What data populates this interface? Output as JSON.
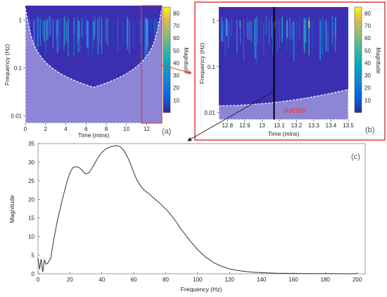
{
  "panels": {
    "a": {
      "tag": "(a)",
      "xlabel": "Time (mins)",
      "ylabel": "Frequency (Hz)",
      "colorbar_label": "Magnitude",
      "xticks": [
        "0",
        "2",
        "4",
        "6",
        "8",
        "10",
        "12"
      ],
      "yticks": [
        "1",
        "0.1",
        "0.01"
      ],
      "cticks": [
        "10",
        "20",
        "30",
        "40",
        "50",
        "60",
        "70",
        "80"
      ]
    },
    "b": {
      "tag": "(b)",
      "xlabel": "Time (mins)",
      "ylabel": "Frequency (Hz)",
      "colorbar_label": "Magnitude",
      "annotation": "Jumps",
      "xticks": [
        "12.8",
        "12.9",
        "13",
        "13.1",
        "13.2",
        "13.3",
        "13.4",
        "13.5"
      ],
      "yticks": [
        "1",
        "0.1",
        "0.01"
      ],
      "cticks": [
        "10",
        "20",
        "30",
        "40",
        "50",
        "60",
        "70",
        "80"
      ]
    },
    "c": {
      "tag": "(c)",
      "xlabel": "Frequency (Hz)",
      "ylabel": "Magnitude",
      "xticks": [
        "0",
        "20",
        "40",
        "60",
        "80",
        "100",
        "120",
        "140",
        "160",
        "180",
        "200"
      ],
      "yticks": [
        "0",
        "5",
        "10",
        "15",
        "20",
        "25",
        "30",
        "35"
      ]
    }
  },
  "colors": {
    "background_blue": "#3a2fb0",
    "cone_fill": "#8d86d6",
    "highlight_box": "#e23b3b",
    "arrow": "#e23b3b",
    "jumps_text": "#ff3030",
    "line": "#333333"
  },
  "chart_data": [
    {
      "type": "heatmap",
      "panel": "a",
      "xlim": [
        0,
        13.5
      ],
      "ylim": [
        0.007,
        2
      ],
      "yscale": "log",
      "clim": [
        0,
        85
      ],
      "colormap": "parula",
      "highlight_region_x": [
        12.0,
        13.5
      ]
    },
    {
      "type": "heatmap",
      "panel": "b",
      "xlim": [
        12.75,
        13.5
      ],
      "ylim": [
        0.007,
        2
      ],
      "yscale": "log",
      "clim": [
        0,
        85
      ],
      "colormap": "parula",
      "marker_time": 13.07
    },
    {
      "type": "line",
      "panel": "c",
      "xlim": [
        0,
        205
      ],
      "ylim": [
        0,
        35
      ],
      "x": [
        0,
        1,
        2,
        3,
        4,
        5,
        6,
        7,
        8,
        10,
        12,
        15,
        18,
        20,
        22,
        24,
        26,
        28,
        30,
        32,
        34,
        36,
        38,
        40,
        42,
        44,
        46,
        48,
        50,
        52,
        54,
        56,
        58,
        60,
        62,
        64,
        66,
        68,
        70,
        74,
        78,
        82,
        86,
        90,
        95,
        100,
        105,
        110,
        115,
        120,
        125,
        130,
        135,
        140,
        145,
        150,
        160,
        170,
        180,
        190,
        200
      ],
      "y": [
        4.2,
        1.2,
        4.0,
        0.5,
        3.8,
        2.6,
        2.8,
        3.5,
        4.2,
        9.5,
        14,
        19.5,
        24.5,
        27.2,
        28.6,
        28.8,
        28.5,
        27.6,
        26.8,
        27.2,
        28.5,
        30.0,
        31.5,
        32.6,
        33.4,
        33.9,
        34.2,
        34.4,
        34.4,
        34.0,
        33.0,
        31.5,
        29.5,
        27.2,
        25.2,
        23.8,
        22.7,
        22.0,
        21.3,
        19.8,
        18.3,
        16.5,
        14.3,
        11.8,
        9.0,
        6.5,
        4.5,
        3.0,
        2.0,
        1.3,
        0.9,
        0.6,
        0.4,
        0.3,
        0.2,
        0.15,
        0.1,
        0.05,
        0.03,
        0.02,
        0.02
      ]
    }
  ]
}
